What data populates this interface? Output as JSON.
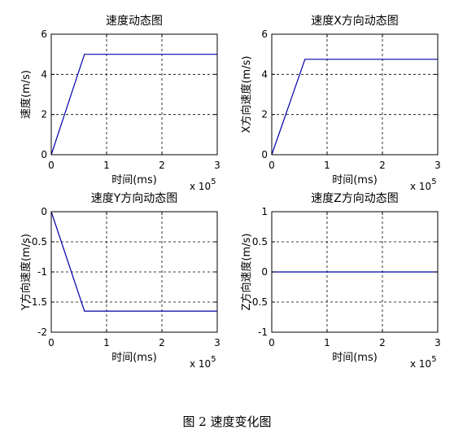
{
  "chart_data": [
    {
      "type": "line",
      "title": "速度动态图",
      "xlabel": "时间(ms)",
      "ylabel": "速度(m/s)",
      "x_multiplier": "x 10",
      "x_multiplier_exp": "5",
      "xlim": [
        0,
        3
      ],
      "ylim": [
        0,
        6
      ],
      "xticks": [
        0,
        1,
        2,
        3
      ],
      "yticks": [
        0,
        2,
        4,
        6
      ],
      "ytick_labels": [
        "0",
        "2",
        "4",
        "6"
      ],
      "grid": true,
      "series": [
        {
          "color": "#0000aa",
          "x": [
            0,
            0.6,
            3
          ],
          "y": [
            0,
            5,
            5
          ]
        }
      ]
    },
    {
      "type": "line",
      "title": "速度X方向动态图",
      "xlabel": "时间(ms)",
      "ylabel": "X方向速度(m/s)",
      "x_multiplier": "x 10",
      "x_multiplier_exp": "5",
      "xlim": [
        0,
        3
      ],
      "ylim": [
        0,
        6
      ],
      "xticks": [
        0,
        1,
        2,
        3
      ],
      "yticks": [
        0,
        2,
        4,
        6
      ],
      "ytick_labels": [
        "0",
        "2",
        "4",
        "6"
      ],
      "grid": true,
      "series": [
        {
          "color": "#0000aa",
          "x": [
            0,
            0.6,
            3
          ],
          "y": [
            0,
            4.75,
            4.75
          ]
        }
      ]
    },
    {
      "type": "line",
      "title": "速度Y方向动态图",
      "xlabel": "时间(ms)",
      "ylabel": "Y方向速度(m/s)",
      "x_multiplier": "x 10",
      "x_multiplier_exp": "5",
      "xlim": [
        0,
        3
      ],
      "ylim": [
        -2,
        0
      ],
      "xticks": [
        0,
        1,
        2,
        3
      ],
      "yticks": [
        -2,
        -1.5,
        -1,
        -0.5,
        0
      ],
      "ytick_labels": [
        "-2",
        "-1.5",
        "-1",
        "-0.5",
        "0"
      ],
      "grid": true,
      "series": [
        {
          "color": "#0000aa",
          "x": [
            0,
            0.6,
            3
          ],
          "y": [
            0,
            -1.65,
            -1.65
          ]
        }
      ]
    },
    {
      "type": "line",
      "title": "速度Z方向动态图",
      "xlabel": "时间(ms)",
      "ylabel": "Z方向速度(m/s)",
      "x_multiplier": "x 10",
      "x_multiplier_exp": "5",
      "xlim": [
        0,
        3
      ],
      "ylim": [
        -1,
        1
      ],
      "xticks": [
        0,
        1,
        2,
        3
      ],
      "yticks": [
        -1,
        -0.5,
        0,
        0.5,
        1
      ],
      "ytick_labels": [
        "-1",
        "-0.5",
        "0",
        "0.5",
        "1"
      ],
      "grid": true,
      "series": [
        {
          "color": "#0000aa",
          "x": [
            0,
            3
          ],
          "y": [
            0,
            0
          ]
        }
      ]
    }
  ],
  "caption": "图 2  速度变化图"
}
